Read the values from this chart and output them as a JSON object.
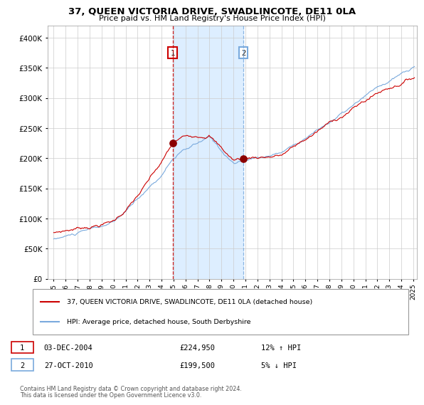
{
  "title": "37, QUEEN VICTORIA DRIVE, SWADLINCOTE, DE11 0LA",
  "subtitle": "Price paid vs. HM Land Registry's House Price Index (HPI)",
  "legend_line1": "37, QUEEN VICTORIA DRIVE, SWADLINCOTE, DE11 0LA (detached house)",
  "legend_line2": "HPI: Average price, detached house, South Derbyshire",
  "sale1_date": "03-DEC-2004",
  "sale1_price": 224950,
  "sale1_hpi": "12% ↑ HPI",
  "sale2_date": "27-OCT-2010",
  "sale2_price": 199500,
  "sale2_hpi": "5% ↓ HPI",
  "footer_line1": "Contains HM Land Registry data © Crown copyright and database right 2024.",
  "footer_line2": "This data is licensed under the Open Government Licence v3.0.",
  "red_color": "#cc0000",
  "blue_color": "#7aaadd",
  "marker_color": "#8b0000",
  "shading_color": "#ddeeff",
  "dashed_red": "#cc0000",
  "dashed_blue": "#7aaadd",
  "ylim": [
    0,
    420000
  ],
  "yticks": [
    0,
    50000,
    100000,
    150000,
    200000,
    250000,
    300000,
    350000,
    400000
  ],
  "x_start_year": 1995,
  "x_end_year": 2025,
  "sale1_x": 2004.92,
  "sale2_x": 2010.83
}
